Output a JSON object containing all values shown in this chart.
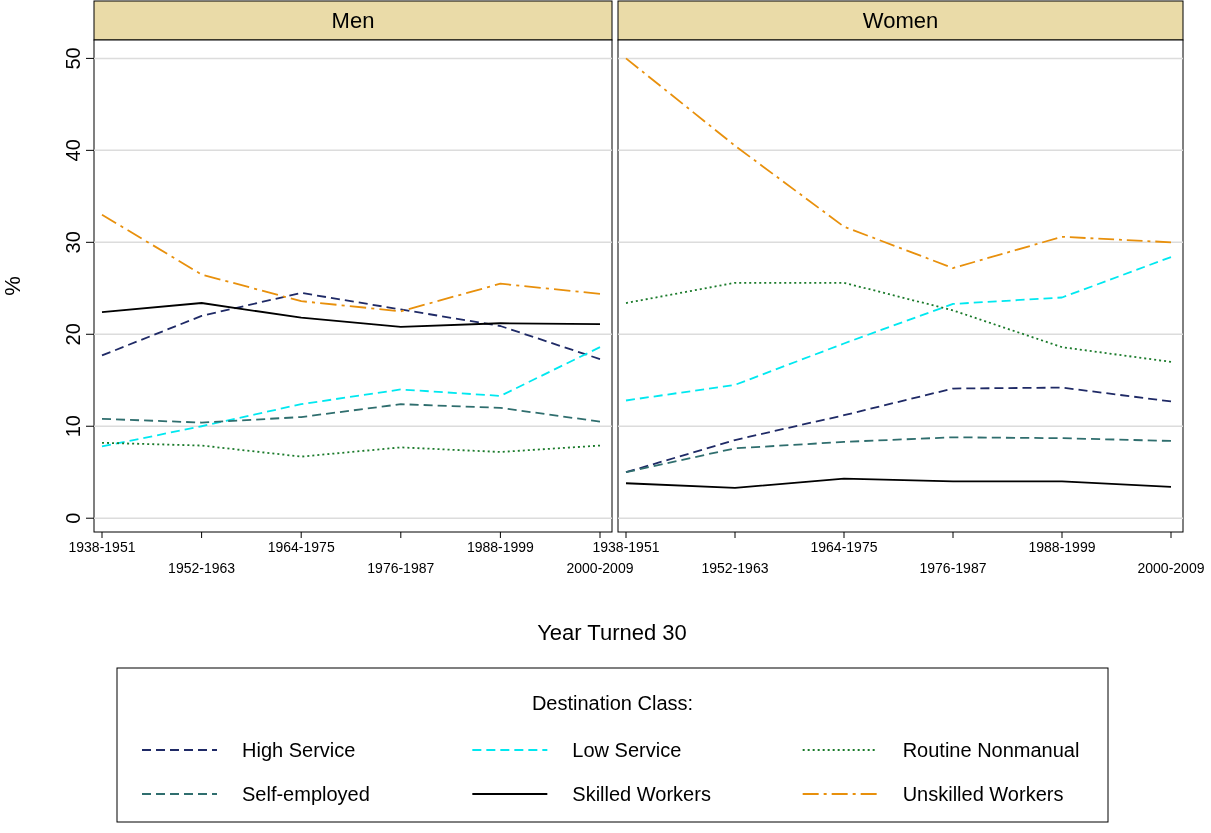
{
  "chart_data": [
    {
      "type": "line",
      "title": "Men",
      "ylabel": "%",
      "xlabel": "Year Turned 30",
      "legend_title": "Destination Class:",
      "legend": "bottom",
      "grid": "y",
      "categories": [
        "1938-1951",
        "1952-1963",
        "1964-1975",
        "1976-1987",
        "1988-1999",
        "2000-2009"
      ],
      "ylim": [
        -1.5,
        52
      ],
      "yticks": [
        0,
        10,
        20,
        30,
        40,
        50
      ],
      "series": [
        {
          "name": "High Service",
          "color": "#1f2a66",
          "line_style": "dashed",
          "values": [
            17.7,
            22,
            24.5,
            22.7,
            20.9,
            17.3
          ]
        },
        {
          "name": "Low Service",
          "color": "#00e8f0",
          "line_style": "dashed",
          "values": [
            7.8,
            10,
            12.4,
            14,
            13.3,
            18.6
          ]
        },
        {
          "name": "Routine Nonmanual",
          "color": "#1a7a2a",
          "line_style": "dotted",
          "values": [
            8.2,
            7.9,
            6.7,
            7.7,
            7.2,
            7.9
          ]
        },
        {
          "name": "Self-employed",
          "color": "#2f6e6e",
          "line_style": "dashed",
          "values": [
            10.8,
            10.4,
            11,
            12.4,
            12,
            10.5
          ]
        },
        {
          "name": "Skilled Workers",
          "color": "#000000",
          "line_style": "solid",
          "values": [
            22.4,
            23.4,
            21.8,
            20.8,
            21.2,
            21.1
          ]
        },
        {
          "name": "Unskilled Workers",
          "color": "#e8900c",
          "line_style": "dashdot",
          "values": [
            33,
            26.5,
            23.6,
            22.5,
            25.5,
            24.4
          ]
        }
      ]
    },
    {
      "type": "line",
      "title": "Women",
      "grid": "y",
      "tick_labels": "x",
      "categories": [
        "1938-1951",
        "1952-1963",
        "1964-1975",
        "1976-1987",
        "1988-1999",
        "2000-2009"
      ],
      "ylim": [
        -1.5,
        52
      ],
      "yticks": [
        0,
        10,
        20,
        30,
        40,
        50
      ],
      "series": [
        {
          "color": "#1f2a66",
          "line_style": "dashed",
          "values": [
            5,
            8.5,
            11.2,
            14.1,
            14.2,
            12.7
          ]
        },
        {
          "color": "#00e8f0",
          "line_style": "dashed",
          "values": [
            12.8,
            14.5,
            19,
            23.3,
            24,
            28.4
          ]
        },
        {
          "color": "#1a7a2a",
          "line_style": "dotted",
          "values": [
            23.4,
            25.6,
            25.6,
            22.6,
            18.6,
            17
          ]
        },
        {
          "color": "#2f6e6e",
          "line_style": "dashed",
          "values": [
            5,
            7.6,
            8.3,
            8.8,
            8.7,
            8.4
          ]
        },
        {
          "color": "#000000",
          "line_style": "solid",
          "values": [
            3.8,
            3.3,
            4.3,
            4,
            4,
            3.4
          ]
        },
        {
          "color": "#e8900c",
          "line_style": "dashdot",
          "values": [
            50,
            40.5,
            31.7,
            27.2,
            30.6,
            30
          ]
        }
      ]
    }
  ]
}
